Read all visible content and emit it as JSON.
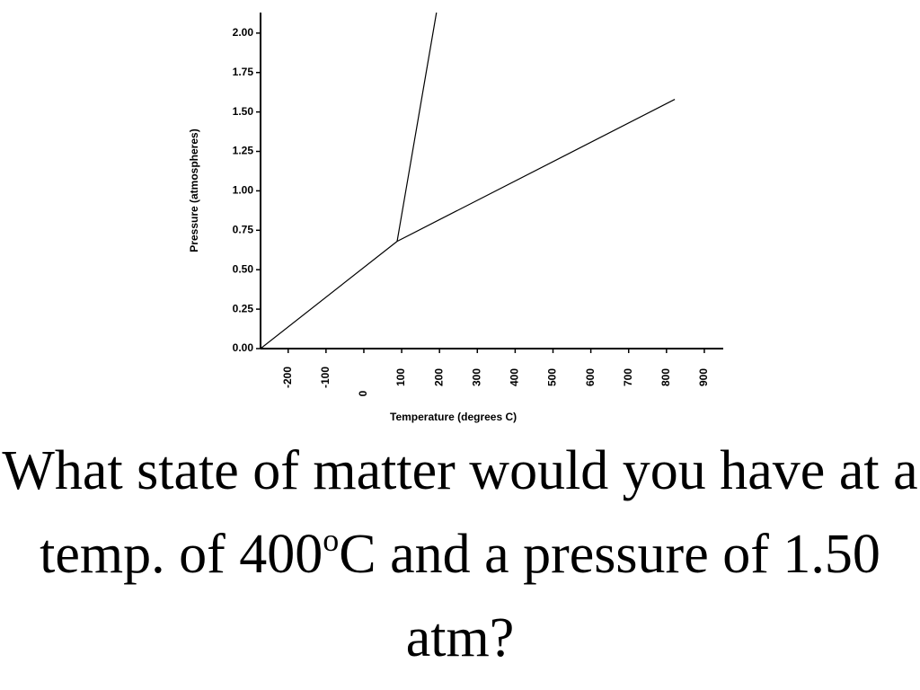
{
  "chart_data": {
    "type": "line",
    "x_label": "Temperature (degrees C)",
    "y_label": "Pressure (atmospheres)",
    "xlim": [
      -273,
      950
    ],
    "xticks": [
      -200,
      -100,
      0,
      100,
      200,
      300,
      400,
      500,
      600,
      700,
      800,
      900
    ],
    "ylim": [
      0,
      2.13
    ],
    "yticks": [
      {
        "value": 0,
        "label": "0.00"
      },
      {
        "value": 0.25,
        "label": "0.25"
      },
      {
        "value": 0.5,
        "label": "0.50"
      },
      {
        "value": 0.75,
        "label": "0.75"
      },
      {
        "value": 1,
        "label": "1.00"
      },
      {
        "value": 1.25,
        "label": "1.25"
      },
      {
        "value": 1.5,
        "label": "1.50"
      },
      {
        "value": 1.75,
        "label": "1.75"
      },
      {
        "value": 2,
        "label": "2.00"
      }
    ],
    "grid": false,
    "series": [
      {
        "color": "#000000",
        "x": [
          -273,
          88
        ],
        "values": [
          0,
          0.68
        ]
      },
      {
        "color": "#000000",
        "x": [
          88,
          822
        ],
        "values": [
          0.68,
          1.58
        ]
      },
      {
        "color": "#000000",
        "x": [
          88,
          192
        ],
        "values": [
          0.68,
          2.13
        ]
      }
    ]
  },
  "question": {
    "before": "What state of matter would you have at a temp. of 400",
    "superscript": "o",
    "after": "C and a pressure of 1.50 atm?"
  }
}
